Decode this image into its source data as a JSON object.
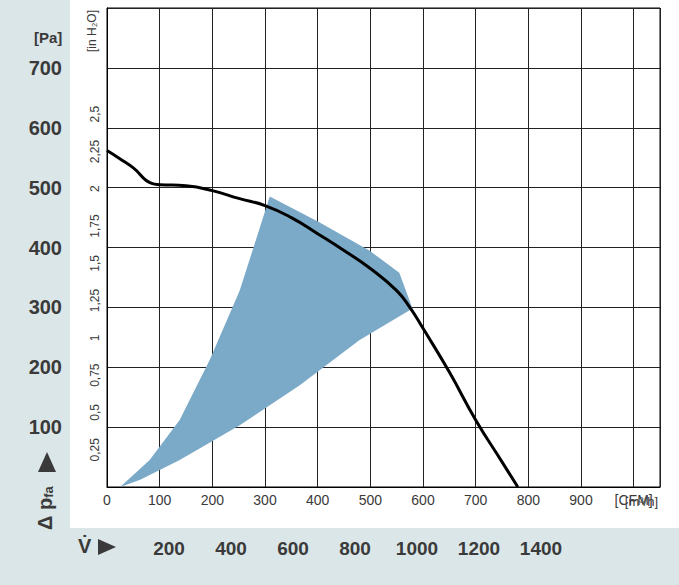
{
  "chart_data": {
    "type": "line",
    "xlim": [
      0,
      1050
    ],
    "xticks": [
      0,
      100,
      200,
      300,
      400,
      500,
      600,
      700,
      800,
      900,
      {
        "value": 1000,
        "label": "[CFM]"
      }
    ],
    "x2lim": [
      0,
      1784
    ],
    "x2ticks": [
      200,
      400,
      600,
      800,
      1000,
      1200,
      1400
    ],
    "x2_label": "[m³/h]",
    "x_title": "V̇",
    "ylim": [
      0,
      800
    ],
    "yticks": [
      100,
      200,
      300,
      400,
      500,
      600,
      700
    ],
    "y_label": "[Pa]",
    "y_title": {
      "text": "Δ p",
      "subscript": "fa"
    },
    "y2lim": [
      0,
      3.212
    ],
    "y2ticks": [
      {
        "value": 0.25,
        "label": "0,25"
      },
      {
        "value": 0.5,
        "label": "0,5"
      },
      {
        "value": 0.75,
        "label": "0,75"
      },
      1,
      {
        "value": 1.25,
        "label": "1,25"
      },
      {
        "value": 1.5,
        "label": "1,5"
      },
      {
        "value": 1.75,
        "label": "1,75"
      },
      2,
      {
        "value": 2.25,
        "label": "2,25"
      },
      {
        "value": 2.5,
        "label": "2,5"
      }
    ],
    "y2_label": "[in H₂O]",
    "grid": true,
    "x": [
      0,
      25,
      50,
      85,
      100,
      150,
      200,
      250,
      300,
      350,
      400,
      450,
      500,
      550,
      575,
      600,
      650,
      700,
      750,
      780
    ],
    "values": [
      562,
      548,
      533,
      507,
      505,
      503,
      495,
      482,
      470,
      450,
      423,
      395,
      365,
      328,
      300,
      265,
      192,
      112,
      42,
      0
    ],
    "color": "#000000",
    "operating_range": {
      "x": [
        25,
        81,
        138,
        195,
        252,
        309,
        403,
        498,
        555,
        580,
        479,
        366,
        252,
        138,
        63
      ],
      "values": [
        0,
        45,
        112,
        212,
        328,
        485,
        442,
        395,
        358,
        298,
        245,
        170,
        103,
        45,
        12
      ],
      "color": "#7ba9c8"
    }
  }
}
